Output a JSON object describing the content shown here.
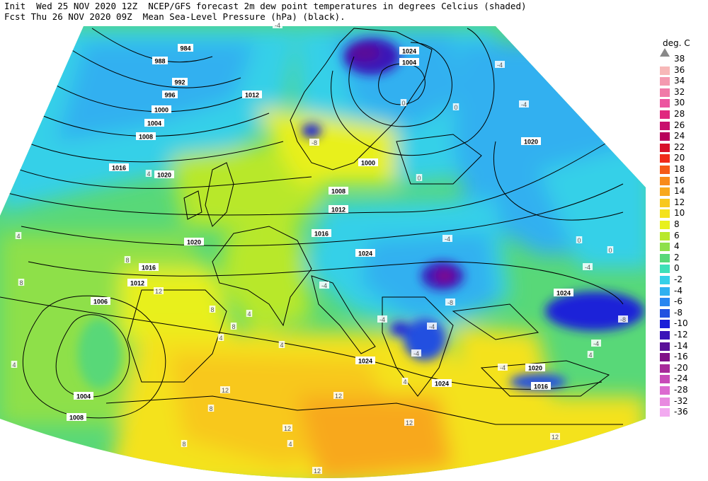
{
  "header": {
    "line1": "Init  Wed 25 NOV 2020 12Z  NCEP/GFS forecast 2m dew point temperatures in degrees Celcius (shaded)",
    "line2": "Fcst Thu 26 NOV 2020 09Z  Mean Sea-Level Pressure (hPa) (black)."
  },
  "legend": {
    "title": "deg. C",
    "entries": [
      {
        "label": "38",
        "color": "#ffffff"
      },
      {
        "label": "36",
        "color": "#f7b8b8"
      },
      {
        "label": "34",
        "color": "#f49ab0"
      },
      {
        "label": "32",
        "color": "#f07aa8"
      },
      {
        "label": "30",
        "color": "#ec55a0"
      },
      {
        "label": "28",
        "color": "#e0287f"
      },
      {
        "label": "26",
        "color": "#c8106e"
      },
      {
        "label": "24",
        "color": "#b8005a"
      },
      {
        "label": "22",
        "color": "#d8102a"
      },
      {
        "label": "20",
        "color": "#f02a1a"
      },
      {
        "label": "18",
        "color": "#f55a18"
      },
      {
        "label": "16",
        "color": "#f88a1a"
      },
      {
        "label": "14",
        "color": "#f8a81c"
      },
      {
        "label": "12",
        "color": "#f8c81e"
      },
      {
        "label": "10",
        "color": "#f4e21c"
      },
      {
        "label": "8",
        "color": "#e8f01c"
      },
      {
        "label": "6",
        "color": "#b8e82c"
      },
      {
        "label": "4",
        "color": "#8ee04a"
      },
      {
        "label": "2",
        "color": "#58d878"
      },
      {
        "label": "0",
        "color": "#3ee0b8"
      },
      {
        "label": "-2",
        "color": "#36d0e8"
      },
      {
        "label": "-4",
        "color": "#30b0f0"
      },
      {
        "label": "-6",
        "color": "#2a86f0"
      },
      {
        "label": "-8",
        "color": "#2050e0"
      },
      {
        "label": "-10",
        "color": "#1a20d8"
      },
      {
        "label": "-12",
        "color": "#3a14b8"
      },
      {
        "label": "-14",
        "color": "#5a1098"
      },
      {
        "label": "-16",
        "color": "#801088"
      },
      {
        "label": "-20",
        "color": "#a82a9a"
      },
      {
        "label": "-24",
        "color": "#c84ab8"
      },
      {
        "label": "-28",
        "color": "#dc6ad0"
      },
      {
        "label": "-32",
        "color": "#e88ae0"
      },
      {
        "label": "-36",
        "color": "#f2aaf0"
      }
    ]
  },
  "isobar_labels": [
    "984",
    "988",
    "992",
    "996",
    "1000",
    "1004",
    "1008",
    "1012",
    "1016",
    "1020",
    "1024",
    "1004",
    "1000",
    "1008",
    "1012",
    "1016",
    "1020",
    "1020",
    "1024",
    "1024",
    "1024",
    "1024",
    "1020",
    "1016",
    "1016",
    "1012",
    "1006",
    "1004",
    "1008"
  ],
  "dew_labels": [
    "-4",
    "-4",
    "-4",
    "-4",
    "-4",
    "-4",
    "-4",
    "-4",
    "-4",
    "-8",
    "-8",
    "-8",
    "-4",
    "-4",
    "0",
    "0",
    "0",
    "0",
    "0",
    "4",
    "4",
    "4",
    "4",
    "4",
    "4",
    "4",
    "8",
    "8",
    "8",
    "8",
    "12",
    "12",
    "12",
    "12",
    "12",
    "12",
    "12",
    "8",
    "8",
    "4",
    "4"
  ]
}
